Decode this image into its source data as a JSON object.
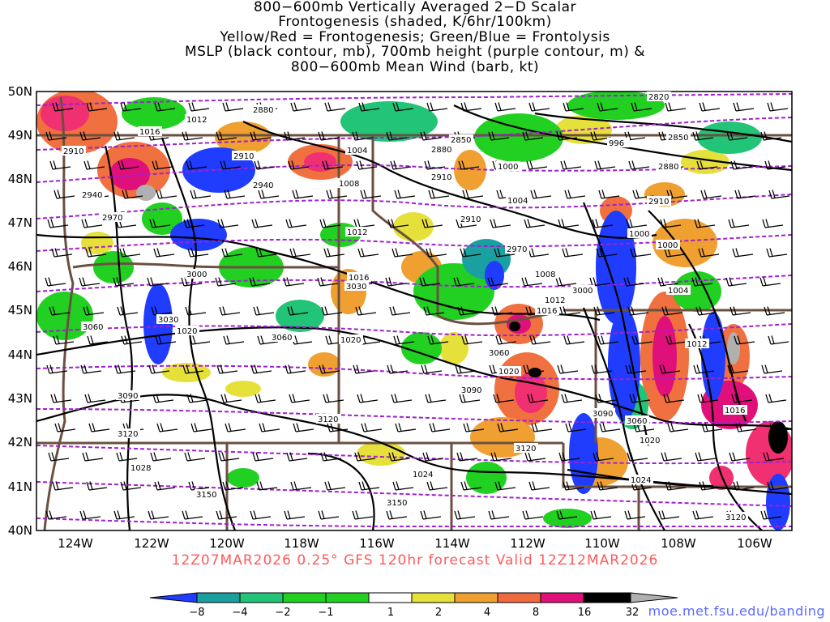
{
  "title_lines": [
    "800−600mb Vertically Averaged 2−D Scalar",
    "Frontogenesis (shaded, K/6hr/100km)",
    "Yellow/Red = Frontogenesis;  Green/Blue = Frontolysis",
    "MSLP (black contour, mb), 700mb height (purple contour, m) &",
    "800−600mb Mean Wind (barb, kt)"
  ],
  "axes": {
    "lat_labels": [
      "50N",
      "49N",
      "48N",
      "47N",
      "46N",
      "45N",
      "44N",
      "43N",
      "42N",
      "41N",
      "40N"
    ],
    "lon_labels": [
      "124W",
      "122W",
      "120W",
      "118W",
      "116W",
      "114W",
      "112W",
      "110W",
      "108W",
      "106W"
    ]
  },
  "mslp_labels": [
    "1012",
    "1016",
    "1004",
    "1008",
    "1000",
    "1004",
    "996",
    "1000",
    "1012",
    "1008",
    "1000",
    "1004",
    "1012",
    "1016",
    "1016",
    "1020",
    "1020",
    "1020",
    "1028",
    "1024",
    "1024",
    "1020",
    "1012",
    "1016"
  ],
  "height_labels": [
    "2880",
    "2820",
    "2850",
    "2880",
    "2910",
    "2940",
    "2970",
    "2910",
    "2910",
    "2850",
    "2910",
    "2970",
    "3000",
    "2940",
    "3030",
    "3060",
    "3060",
    "3030",
    "3060",
    "3090",
    "3120",
    "3120",
    "3090",
    "3150",
    "3150",
    "3120",
    "3090",
    "3060",
    "3000",
    "3120",
    "2910",
    "2880"
  ],
  "colorbar": {
    "labels": [
      "−8",
      "−4",
      "−2",
      "−1",
      "1",
      "2",
      "4",
      "8",
      "16",
      "32"
    ],
    "colors": [
      "#1f3cff",
      "#1aa0a0",
      "#22c477",
      "#22d022",
      "#ffffff",
      "#e6e03a",
      "#f0a030",
      "#f06a40",
      "#f03070",
      "#e0107a",
      "#000000",
      "#b0b0b0"
    ]
  },
  "footer": "12Z07MAR2026 0.25° GFS 120hr forecast Valid 12Z12MAR2026",
  "credit": "moe.met.fsu.edu/banding"
}
